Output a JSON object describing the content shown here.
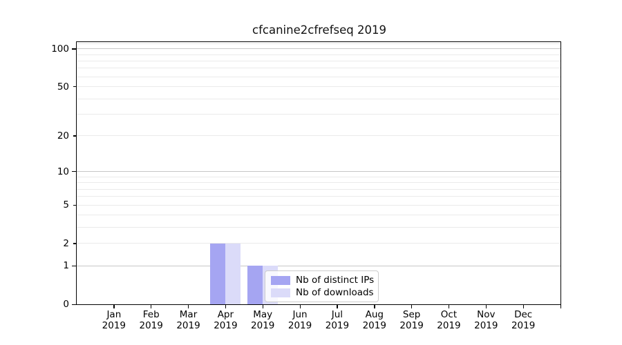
{
  "chart_data": {
    "type": "bar",
    "title": "cfcanine2cfrefseq 2019",
    "x_months": [
      "Jan",
      "Feb",
      "Mar",
      "Apr",
      "May",
      "Jun",
      "Jul",
      "Aug",
      "Sep",
      "Oct",
      "Nov",
      "Dec"
    ],
    "x_year": "2019",
    "series": [
      {
        "name": "Nb of distinct IPs",
        "color": "#a5a5f2",
        "values": [
          0,
          0,
          0,
          2,
          1,
          0,
          0,
          0,
          0,
          0,
          0,
          0
        ]
      },
      {
        "name": "Nb of downloads",
        "color": "#dbdbf9",
        "values": [
          0,
          0,
          0,
          2,
          1,
          0,
          0,
          0,
          0,
          0,
          0,
          0
        ]
      }
    ],
    "yscale": "log1p",
    "ylim": [
      0,
      113
    ],
    "yticks": [
      0,
      1,
      2,
      5,
      10,
      20,
      50,
      100
    ],
    "major_gridlines": [
      1,
      10,
      100
    ],
    "minor_gridlines": [
      2,
      3,
      4,
      5,
      6,
      7,
      8,
      9,
      20,
      30,
      40,
      50,
      60,
      70,
      80,
      90,
      110
    ],
    "grid": "on",
    "legend_position": "inside lower right of plot"
  }
}
